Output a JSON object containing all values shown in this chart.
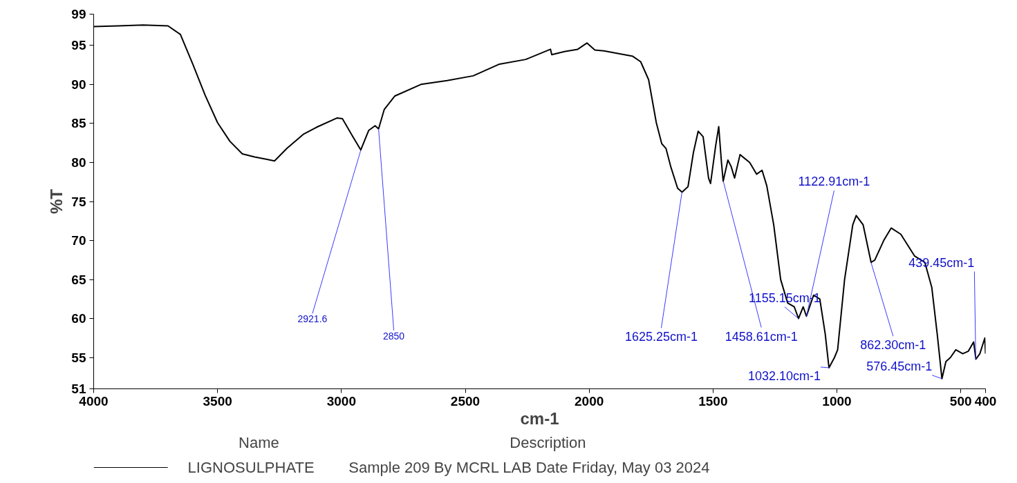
{
  "chart_data": {
    "type": "line",
    "xlabel": "cm-1",
    "ylabel": "%T",
    "legend_title": "Name",
    "xlim": [
      4000,
      400
    ],
    "ylim": [
      51,
      99
    ],
    "xticks": [
      4000,
      3500,
      3000,
      2500,
      2000,
      1500,
      1000,
      500,
      400
    ],
    "yticks": [
      51,
      55,
      60,
      65,
      70,
      75,
      80,
      85,
      90,
      95,
      99
    ],
    "grid": false,
    "legend": "bottom",
    "marker": "none",
    "line_style": "solid",
    "series": [
      {
        "name": "LIGNOSULPHATE",
        "color": "#000000",
        "x": [
          4000,
          3900,
          3800,
          3700,
          3650,
          3600,
          3550,
          3500,
          3450,
          3400,
          3350,
          3300,
          3270,
          3220,
          3154,
          3101,
          3017,
          2996,
          2954,
          2922,
          2890,
          2864,
          2850,
          2827,
          2785,
          2679,
          2573,
          2468,
          2362,
          2256,
          2156,
          2151,
          2100,
          2046,
          2009,
          1977,
          1940,
          1824,
          1792,
          1760,
          1729,
          1707,
          1690,
          1671,
          1643,
          1625,
          1601,
          1579,
          1560,
          1540,
          1518,
          1510,
          1490,
          1477,
          1466,
          1459,
          1440,
          1427,
          1413,
          1391,
          1352,
          1324,
          1302,
          1283,
          1255,
          1227,
          1199,
          1172,
          1155,
          1136,
          1123,
          1094,
          1069,
          1047,
          1032,
          1010,
          997,
          969,
          936,
          922,
          894,
          862,
          847,
          811,
          781,
          742,
          686,
          645,
          617,
          595,
          576,
          560,
          542,
          520,
          492,
          470,
          448,
          439,
          423,
          403,
          400
        ],
        "values": [
          97.4,
          97.5,
          97.6,
          97.5,
          96.4,
          92.6,
          88.6,
          85.1,
          82.7,
          81.1,
          80.7,
          80.4,
          80.2,
          81.8,
          83.6,
          84.5,
          85.7,
          85.6,
          83.3,
          81.6,
          84.1,
          84.7,
          84.3,
          86.8,
          88.5,
          90.0,
          90.5,
          91.1,
          92.6,
          93.2,
          94.5,
          93.8,
          94.2,
          94.5,
          95.3,
          94.4,
          94.3,
          93.6,
          92.9,
          90.6,
          85.1,
          82.4,
          81.8,
          79.5,
          76.7,
          76.2,
          76.9,
          81.3,
          84.0,
          83.3,
          78.0,
          77.3,
          82.0,
          84.6,
          80.0,
          77.6,
          80.3,
          79.5,
          78.0,
          81.0,
          80.0,
          78.5,
          79.0,
          77.0,
          72.0,
          65.0,
          62.0,
          61.5,
          60.0,
          61.5,
          60.3,
          63.0,
          62.5,
          58.0,
          53.7,
          55.0,
          56.0,
          65.0,
          72.0,
          73.2,
          72.0,
          67.2,
          67.5,
          70.0,
          71.6,
          70.8,
          68.0,
          67.2,
          64.0,
          58.0,
          52.3,
          54.5,
          55.0,
          56.0,
          55.5,
          55.8,
          57.0,
          54.8,
          55.5,
          57.5,
          55.5
        ]
      }
    ],
    "annotations": [
      {
        "text": "2921.6",
        "x": 2921.6,
        "y": 81.6
      },
      {
        "text": "2850",
        "x": 2850,
        "y": 84.3
      },
      {
        "text": "1625.25cm-1",
        "x": 1625.25,
        "y": 76.2
      },
      {
        "text": "1458.61cm-1",
        "x": 1458.61,
        "y": 77.6
      },
      {
        "text": "1155.15cm-1",
        "x": 1155.15,
        "y": 60.0
      },
      {
        "text": "1122.91cm-1",
        "x": 1122.91,
        "y": 60.3
      },
      {
        "text": "1032.10cm-1",
        "x": 1032.1,
        "y": 53.7
      },
      {
        "text": "862.30cm-1",
        "x": 862.3,
        "y": 67.2
      },
      {
        "text": "576.45cm-1",
        "x": 576.45,
        "y": 52.3
      },
      {
        "text": "439.45cm-1",
        "x": 439.45,
        "y": 54.8
      },
      "Description",
      "Sample 209 By MCRL LAB Date Friday, May 03 2024"
    ]
  }
}
